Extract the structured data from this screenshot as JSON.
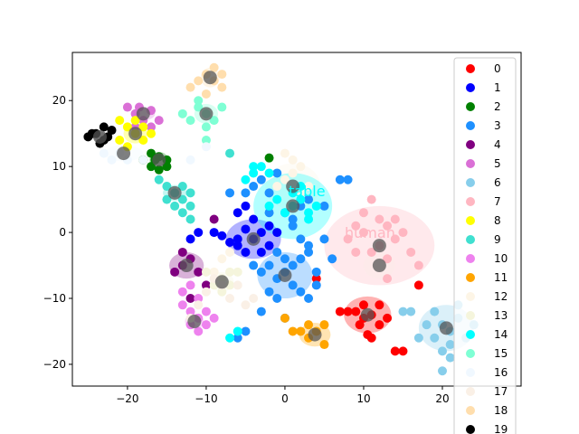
{
  "chart_data": {
    "type": "scatter",
    "title": "",
    "xlabel": "",
    "ylabel": "",
    "xlim": [
      -27,
      30
    ],
    "ylim": [
      -23.3,
      27.3
    ],
    "xticks": [
      -20,
      -10,
      0,
      10,
      20
    ],
    "yticks": [
      -20,
      -10,
      0,
      10,
      20
    ],
    "grid": false,
    "legend_position": "right",
    "series": [
      {
        "name": "0",
        "color": "#ff0000",
        "points": [
          [
            9,
            -12
          ],
          [
            10,
            -13
          ],
          [
            11,
            -12.5
          ],
          [
            12,
            -14
          ],
          [
            8,
            -12
          ],
          [
            9.5,
            -14
          ],
          [
            11,
            -16
          ],
          [
            13,
            -13
          ],
          [
            7,
            -12
          ],
          [
            10,
            -11
          ],
          [
            15,
            -18
          ],
          [
            14,
            -18
          ],
          [
            17,
            -8
          ],
          [
            4,
            -7
          ],
          [
            12,
            -11
          ],
          [
            10.5,
            -15.5
          ]
        ]
      },
      {
        "name": "1",
        "color": "#0000ff",
        "points": [
          [
            -4,
            -1
          ],
          [
            -3,
            0
          ],
          [
            -5,
            0.5
          ],
          [
            -6,
            -1
          ],
          [
            -2,
            -2
          ],
          [
            -4,
            2
          ],
          [
            -6,
            3
          ],
          [
            -7,
            -1.5
          ],
          [
            -8,
            -0.5
          ],
          [
            -9,
            0
          ],
          [
            -11,
            0
          ],
          [
            -12,
            -1
          ],
          [
            -5,
            -3
          ],
          [
            -3,
            -3
          ],
          [
            -2,
            1
          ],
          [
            -1,
            0
          ],
          [
            -6,
            -2
          ],
          [
            -5,
            4
          ]
        ]
      },
      {
        "name": "2",
        "color": "#008000",
        "points": [
          [
            -17,
            12
          ],
          [
            -16,
            11.5
          ],
          [
            -15,
            11
          ],
          [
            -17,
            10
          ],
          [
            -16,
            9.5
          ],
          [
            -18,
            11
          ],
          [
            -15,
            10
          ],
          [
            -2,
            11.3
          ],
          [
            -16.5,
            11
          ]
        ]
      },
      {
        "name": "3",
        "color": "#1e90ff",
        "points": [
          [
            0,
            -6
          ],
          [
            1,
            -5
          ],
          [
            -1,
            -7
          ],
          [
            2,
            -4
          ],
          [
            -2,
            -5
          ],
          [
            -1,
            -3
          ],
          [
            3,
            -2
          ],
          [
            1,
            -8
          ],
          [
            2,
            -9
          ],
          [
            4,
            -6
          ],
          [
            -3,
            -6
          ],
          [
            0,
            -4
          ],
          [
            2,
            -1
          ],
          [
            3,
            -3
          ],
          [
            4,
            -8
          ],
          [
            -4,
            -5
          ],
          [
            1,
            2
          ],
          [
            2,
            4
          ],
          [
            0,
            3
          ],
          [
            3,
            5
          ],
          [
            5,
            4
          ],
          [
            -2,
            6
          ],
          [
            -3,
            8
          ],
          [
            -1,
            9
          ],
          [
            -4,
            7
          ],
          [
            -5,
            6
          ],
          [
            -2,
            3
          ],
          [
            3,
            -10
          ],
          [
            6,
            -4
          ],
          [
            5,
            -1
          ],
          [
            -1,
            -10
          ],
          [
            -2,
            -9
          ],
          [
            8,
            8
          ],
          [
            7,
            8
          ],
          [
            -7,
            6
          ],
          [
            -3,
            -12
          ],
          [
            0,
            -13
          ],
          [
            -6,
            -16
          ],
          [
            -5,
            -15
          ],
          [
            1,
            1
          ]
        ]
      },
      {
        "name": "4",
        "color": "#800080",
        "points": [
          [
            -13,
            -5
          ],
          [
            -12,
            -4
          ],
          [
            -14,
            -6
          ],
          [
            -11,
            -6
          ],
          [
            -13,
            -3
          ],
          [
            -12,
            -10
          ],
          [
            -10,
            -8
          ],
          [
            -9,
            2
          ]
        ]
      },
      {
        "name": "5",
        "color": "#da70d6",
        "points": [
          [
            -19,
            18
          ],
          [
            -18,
            17
          ],
          [
            -17,
            18.5
          ],
          [
            -20,
            19
          ],
          [
            -18.5,
            19
          ],
          [
            -16,
            17
          ],
          [
            -17,
            16
          ],
          [
            -19,
            16
          ]
        ]
      },
      {
        "name": "6",
        "color": "#87ceeb",
        "points": [
          [
            20,
            -14
          ],
          [
            21,
            -15
          ],
          [
            19,
            -16
          ],
          [
            22,
            -13
          ],
          [
            20,
            -18
          ],
          [
            21,
            -17
          ],
          [
            18,
            -14
          ],
          [
            23,
            -16
          ],
          [
            19,
            -12
          ],
          [
            20,
            -21
          ],
          [
            21,
            -19
          ],
          [
            17,
            -16
          ],
          [
            22,
            -11
          ],
          [
            24,
            -14
          ],
          [
            16,
            -12
          ],
          [
            15,
            -12
          ]
        ]
      },
      {
        "name": "7",
        "color": "#ffb6c1",
        "points": [
          [
            12,
            -2
          ],
          [
            10,
            0
          ],
          [
            13,
            1
          ],
          [
            11,
            -3
          ],
          [
            14,
            -1
          ],
          [
            9,
            1
          ],
          [
            12,
            2
          ],
          [
            10,
            3
          ],
          [
            13,
            -4
          ],
          [
            9,
            -3
          ],
          [
            15,
            0
          ],
          [
            14,
            2
          ],
          [
            11,
            5
          ],
          [
            8,
            -1
          ],
          [
            17,
            -5
          ],
          [
            16,
            -3
          ],
          [
            13,
            -7
          ]
        ]
      },
      {
        "name": "8",
        "color": "#ffff00",
        "points": [
          [
            -19,
            15
          ],
          [
            -20,
            16
          ],
          [
            -18,
            14
          ],
          [
            -21,
            14
          ],
          [
            -20,
            13
          ],
          [
            -19,
            17
          ],
          [
            -18,
            16
          ],
          [
            -21,
            17
          ],
          [
            -17,
            15
          ]
        ]
      },
      {
        "name": "9",
        "color": "#40e0d0",
        "points": [
          [
            -14,
            6
          ],
          [
            -13,
            5
          ],
          [
            -15,
            7
          ],
          [
            -12,
            6
          ],
          [
            -14,
            4
          ],
          [
            -16,
            8
          ],
          [
            -13,
            7
          ],
          [
            -15,
            5
          ],
          [
            -12,
            4
          ],
          [
            -7,
            12
          ],
          [
            -12,
            2
          ],
          [
            -13,
            3
          ]
        ]
      },
      {
        "name": "10",
        "color": "#ee82ee",
        "points": [
          [
            -11,
            -13
          ],
          [
            -10,
            -14
          ],
          [
            -12,
            -12
          ],
          [
            -13,
            -11
          ],
          [
            -11,
            -10
          ],
          [
            -10,
            -12
          ],
          [
            -12,
            -14
          ],
          [
            -9,
            -13
          ],
          [
            -13,
            -9
          ],
          [
            -12,
            -8
          ],
          [
            -11,
            -15
          ]
        ]
      },
      {
        "name": "11",
        "color": "#ffa500",
        "points": [
          [
            3,
            -16
          ],
          [
            4,
            -15
          ],
          [
            5,
            -17
          ],
          [
            2,
            -15
          ],
          [
            3,
            -14
          ],
          [
            1,
            -15
          ],
          [
            0,
            -13
          ],
          [
            5,
            -14
          ]
        ]
      },
      {
        "name": "12",
        "color": "#fdf5e6",
        "points": [
          [
            0,
            8
          ],
          [
            1,
            9
          ],
          [
            2,
            6
          ],
          [
            -1,
            7
          ],
          [
            0,
            12
          ],
          [
            1,
            11
          ],
          [
            3,
            7
          ],
          [
            2,
            10
          ],
          [
            -8,
            -4
          ],
          [
            -7,
            -3
          ],
          [
            -9,
            -6
          ]
        ]
      },
      {
        "name": "13",
        "color": "#f5f5dc",
        "points": [
          [
            -8,
            -7
          ],
          [
            -7,
            -8
          ],
          [
            -9,
            -8
          ],
          [
            -10,
            -6
          ],
          [
            -6,
            -6
          ],
          [
            -8,
            -9
          ],
          [
            -7,
            -6
          ]
        ]
      },
      {
        "name": "14",
        "color": "#00ffff",
        "points": [
          [
            1,
            4
          ],
          [
            2,
            5
          ],
          [
            0,
            3
          ],
          [
            3,
            3
          ],
          [
            -1,
            5
          ],
          [
            2,
            7
          ],
          [
            4,
            4
          ],
          [
            1,
            6
          ],
          [
            -2,
            4
          ],
          [
            -3,
            10
          ],
          [
            -4,
            9
          ],
          [
            -4,
            10
          ],
          [
            -5,
            8
          ],
          [
            -2,
            9
          ],
          [
            3,
            2
          ],
          [
            -7,
            -16
          ],
          [
            -6,
            -15
          ]
        ]
      },
      {
        "name": "15",
        "color": "#7fffd4",
        "points": [
          [
            -10,
            18
          ],
          [
            -11,
            19
          ],
          [
            -9,
            17
          ],
          [
            -12,
            17
          ],
          [
            -11,
            20
          ],
          [
            -8,
            19
          ],
          [
            -10,
            16
          ],
          [
            -13,
            18
          ],
          [
            -10,
            14
          ]
        ]
      },
      {
        "name": "16",
        "color": "#f0f8ff",
        "points": [
          [
            -22,
            11
          ],
          [
            -21,
            12
          ],
          [
            -20,
            11
          ],
          [
            -23,
            12
          ],
          [
            -18,
            11
          ],
          [
            -12,
            11
          ],
          [
            -10,
            13
          ]
        ]
      },
      {
        "name": "17",
        "color": "#faf0e6",
        "points": [
          [
            -8,
            -8
          ],
          [
            -9,
            -7
          ],
          [
            -10,
            -9
          ],
          [
            -7,
            -10
          ],
          [
            -6,
            -8
          ],
          [
            -11,
            -11
          ],
          [
            -12,
            -13
          ],
          [
            -5,
            -11
          ],
          [
            -4,
            -10
          ]
        ]
      },
      {
        "name": "18",
        "color": "#ffdead",
        "points": [
          [
            -9,
            23
          ],
          [
            -10,
            24
          ],
          [
            -8,
            22
          ],
          [
            -11,
            23
          ],
          [
            -9,
            25
          ],
          [
            -10,
            21
          ],
          [
            -12,
            22
          ],
          [
            -8,
            24
          ]
        ]
      },
      {
        "name": "19",
        "color": "#000000",
        "points": [
          [
            -24,
            15
          ],
          [
            -23,
            14
          ],
          [
            -25,
            14.5
          ],
          [
            -22,
            15.5
          ],
          [
            -23.5,
            13.5
          ],
          [
            -24.5,
            15
          ],
          [
            -22.5,
            14.5
          ],
          [
            -23,
            16
          ]
        ]
      }
    ],
    "centroids": [
      {
        "color": "#ff0000",
        "x": 10.5,
        "y": -12.5,
        "rx": 3,
        "ry": 2.8
      },
      {
        "color": "#0000ff",
        "x": -4,
        "y": -1,
        "rx": 3.5,
        "ry": 3
      },
      {
        "color": "#008000",
        "x": -16,
        "y": 11,
        "rx": 1.2,
        "ry": 1.2
      },
      {
        "color": "#1e90ff",
        "x": 0,
        "y": -6.5,
        "rx": 3.5,
        "ry": 3.5
      },
      {
        "color": "#800080",
        "x": -12.5,
        "y": -5,
        "rx": 2.2,
        "ry": 2
      },
      {
        "color": "#da70d6",
        "x": -18,
        "y": 18,
        "rx": 1.5,
        "ry": 1
      },
      {
        "color": "#87ceeb",
        "x": 20.5,
        "y": -14.5,
        "rx": 3.5,
        "ry": 3.5
      },
      {
        "color": "#ffb6c1",
        "x": 12,
        "y": -2,
        "rx": 7,
        "ry": 6
      },
      {
        "color": "#ffff00",
        "x": -19,
        "y": 15,
        "rx": 1.5,
        "ry": 1.5
      },
      {
        "color": "#40e0d0",
        "x": -14,
        "y": 6,
        "rx": 1.5,
        "ry": 1.2
      },
      {
        "color": "#ee82ee",
        "x": -11.5,
        "y": -13.5,
        "rx": 1.2,
        "ry": 1.2
      },
      {
        "color": "#ffa500",
        "x": 3.8,
        "y": -15.5,
        "rx": 2,
        "ry": 1.8
      },
      {
        "color": "#fdf5e6",
        "x": 1,
        "y": 7,
        "rx": 3.5,
        "ry": 3.5
      },
      {
        "color": "#f5f5dc",
        "x": -8,
        "y": -7.5,
        "rx": 1.5,
        "ry": 1.5
      },
      {
        "color": "#00ffff",
        "x": 1,
        "y": 4,
        "rx": 5,
        "ry": 5
      },
      {
        "color": "#7fffd4",
        "x": -10,
        "y": 18,
        "rx": 1.5,
        "ry": 1.5
      },
      {
        "color": "#f0f8ff",
        "x": -20.5,
        "y": 12,
        "rx": 2.5,
        "ry": 1.2
      },
      {
        "color": "#faf0e6",
        "x": 12,
        "y": -5,
        "rx": 2,
        "ry": 2
      },
      {
        "color": "#ffdead",
        "x": -9.5,
        "y": 23.5,
        "rx": 1.2,
        "ry": 1.5
      },
      {
        "color": "#000000",
        "x": -23.5,
        "y": 14.5,
        "rx": 0.8,
        "ry": 0.8
      }
    ],
    "annotations": [
      {
        "text": "table",
        "x": 2.8,
        "y": 5.5,
        "color": "#00ffff"
      },
      {
        "text": "human",
        "x": 10.8,
        "y": -0.8,
        "color": "#ffb6c1"
      }
    ]
  }
}
